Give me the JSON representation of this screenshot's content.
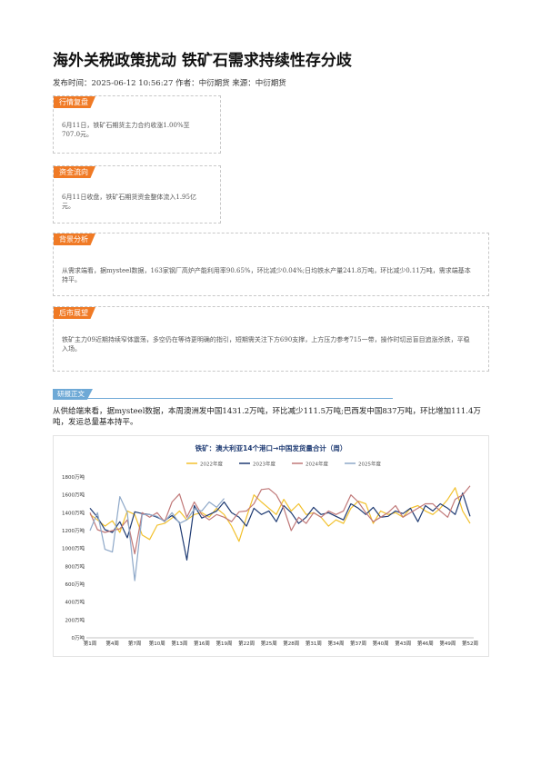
{
  "article": {
    "title": "海外关税政策扰动 铁矿石需求持续性存分歧",
    "meta": "发布时间：2025-06-12 10:56:27 作者：中衍期货 来源：中衍期货"
  },
  "sections": [
    {
      "tag": "行情复盘",
      "text": "6月11日，铁矿石期货主力合约收涨1.00%至707.0元。"
    },
    {
      "tag": "资金流向",
      "text": "6月11日收盘，铁矿石期货资金整体流入1.95亿元。"
    },
    {
      "tag": "背景分析",
      "text": "从需求端看，据mysteel数据，163家钢厂高炉产能利用率90.65%，环比减少0.04%;日均铁水产量241.8万吨，环比减少0.11万吨，需求端基本持平。"
    },
    {
      "tag": "后市展望",
      "text": "铁矿主力09近期持续窄体震荡，多空仍在等待更明确的指引，短期需关注下方690支撑，上方压力参考715一带，操作时切忌盲目追涨杀跌，平稳入场。"
    }
  ],
  "research": {
    "tag": "研报正文",
    "paragraph": "从供给端来看，据mysteel数据，本周澳洲发中国1431.2万吨，环比减少111.5万吨;巴西发中国837万吨，环比增加111.4万吨，发运总量基本持平。"
  },
  "chart_data": {
    "type": "line",
    "title": "铁矿：澳大利亚14个港口→中国发货量合计（周）",
    "ylim": [
      0,
      1800
    ],
    "yticks": [
      "0万吨",
      "200万吨",
      "400万吨",
      "600万吨",
      "800万吨",
      "1000万吨",
      "1200万吨",
      "1400万吨",
      "1600万吨",
      "1800万吨"
    ],
    "xticks": [
      "第1周",
      "第4周",
      "第7周",
      "第10周",
      "第13周",
      "第16周",
      "第19周",
      "第22周",
      "第25周",
      "第28周",
      "第31周",
      "第34周",
      "第37周",
      "第40周",
      "第43周",
      "第46周",
      "第49周",
      "第52周"
    ],
    "grid": false,
    "legend_position": "top",
    "series": [
      {
        "name": "2022年度",
        "color": "#f2c12e",
        "values": [
          1380,
          1320,
          1250,
          1310,
          1180,
          1420,
          1380,
          1150,
          1100,
          1260,
          1280,
          1340,
          1420,
          1320,
          1380,
          1400,
          1350,
          1450,
          1380,
          1250,
          1080,
          1350,
          1600,
          1520,
          1450,
          1380,
          1550,
          1420,
          1500,
          1380,
          1400,
          1350,
          1250,
          1320,
          1280,
          1450,
          1530,
          1500,
          1280,
          1420,
          1380,
          1400,
          1350,
          1450,
          1480,
          1420,
          1380,
          1450,
          1550,
          1680,
          1420,
          1280
        ]
      },
      {
        "name": "2023年度",
        "color": "#1f3b73",
        "values": [
          1450,
          1350,
          1210,
          1180,
          1300,
          1120,
          1410,
          1390,
          1380,
          1350,
          1310,
          1370,
          1290,
          870,
          1480,
          1340,
          1380,
          1420,
          1520,
          1400,
          1350,
          1250,
          1450,
          1380,
          1420,
          1300,
          1480,
          1400,
          1280,
          1350,
          1460,
          1380,
          1400,
          1360,
          1320,
          1500,
          1450,
          1380,
          1460,
          1350,
          1360,
          1420,
          1390,
          1450,
          1300,
          1480,
          1420,
          1500,
          1450,
          1380,
          1620,
          1360
        ]
      },
      {
        "name": "2024年度",
        "color": "#c07878",
        "values": [
          1400,
          1210,
          1180,
          1200,
          1220,
          1320,
          940,
          1400,
          1350,
          1400,
          1300,
          1520,
          1610,
          1350,
          1520,
          1380,
          1320,
          1380,
          1350,
          1300,
          1410,
          1420,
          1500,
          1660,
          1670,
          1600,
          1450,
          1200,
          1350,
          1280,
          1400,
          1350,
          1420,
          1380,
          1420,
          1600,
          1520,
          1400,
          1300,
          1350,
          1400,
          1480,
          1350,
          1400,
          1450,
          1500,
          1500,
          1420,
          1350,
          1550,
          1600,
          1700
        ]
      },
      {
        "name": "2025年度",
        "color": "#8ea8c8",
        "values": [
          1200,
          1400,
          990,
          960,
          1580,
          1400,
          640,
          1380,
          1380,
          1360,
          1300,
          1400,
          1280,
          1320,
          1440,
          1420,
          1520,
          1460,
          1560
        ]
      }
    ]
  }
}
